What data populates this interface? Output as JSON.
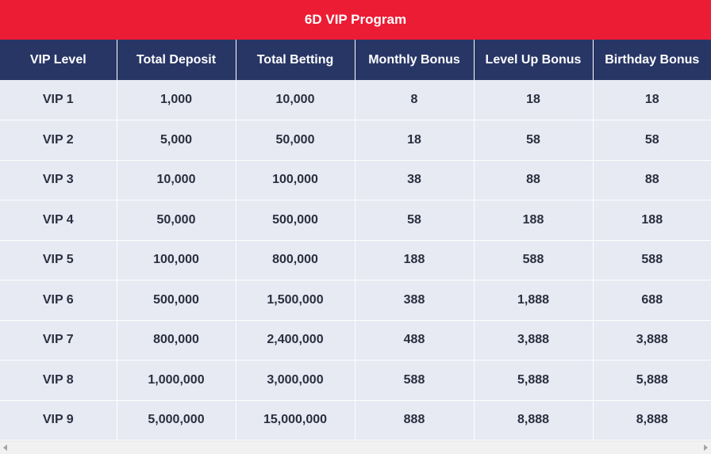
{
  "title": "6D VIP Program",
  "table": {
    "headers": [
      "VIP Level",
      "Total Deposit",
      "Total Betting",
      "Monthly Bonus",
      "Level Up Bonus",
      "Birthday Bonus"
    ],
    "rows": [
      [
        "VIP 1",
        "1,000",
        "10,000",
        "8",
        "18",
        "18"
      ],
      [
        "VIP 2",
        "5,000",
        "50,000",
        "18",
        "58",
        "58"
      ],
      [
        "VIP 3",
        "10,000",
        "100,000",
        "38",
        "88",
        "88"
      ],
      [
        "VIP 4",
        "50,000",
        "500,000",
        "58",
        "188",
        "188"
      ],
      [
        "VIP 5",
        "100,000",
        "800,000",
        "188",
        "588",
        "588"
      ],
      [
        "VIP 6",
        "500,000",
        "1,500,000",
        "388",
        "1,888",
        "688"
      ],
      [
        "VIP 7",
        "800,000",
        "2,400,000",
        "488",
        "3,888",
        "3,888"
      ],
      [
        "VIP 8",
        "1,000,000",
        "3,000,000",
        "588",
        "5,888",
        "5,888"
      ],
      [
        "VIP 9",
        "5,000,000",
        "15,000,000",
        "888",
        "8,888",
        "8,888"
      ]
    ]
  },
  "colors": {
    "title_bg": "#ec1c34",
    "header_bg": "#283666",
    "cell_bg": "#e7e9f3",
    "text": "#2a2f3f"
  },
  "scrollbar": {
    "left_icon": "chevron-left-icon",
    "right_icon": "chevron-right-icon"
  }
}
